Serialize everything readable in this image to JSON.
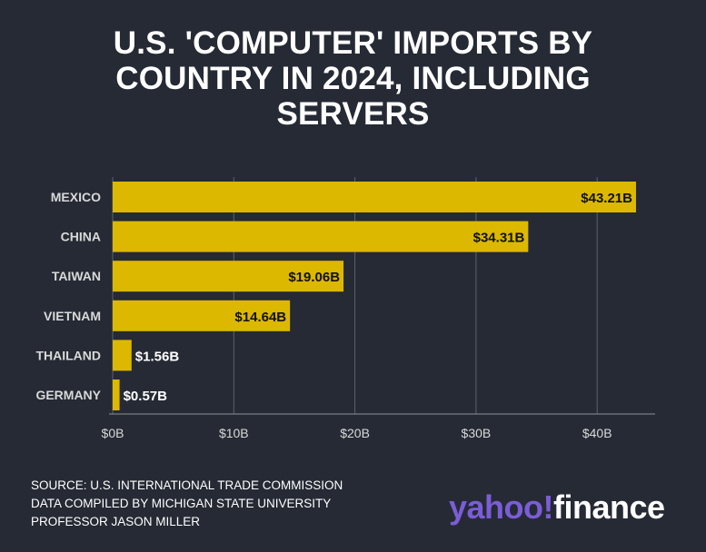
{
  "title": "U.S. 'COMPUTER' IMPORTS BY COUNTRY IN 2024, INCLUDING SERVERS",
  "source_lines": [
    "SOURCE: U.S. INTERNATIONAL TRADE COMMISSION",
    "DATA COMPILED BY MICHIGAN STATE UNIVERSITY",
    "PROFESSOR JASON MILLER"
  ],
  "logo": {
    "part1": "yahoo!",
    "part2": "finance"
  },
  "colors": {
    "background": "#252a34",
    "bar": "#dcb800",
    "grid": "#5c616b",
    "label": "#d9d9d9",
    "logo_purple": "#7b5dd6"
  },
  "chart_data": {
    "type": "bar",
    "orientation": "horizontal",
    "categories": [
      "MEXICO",
      "CHINA",
      "TAIWAN",
      "VIETNAM",
      "THAILAND",
      "GERMANY"
    ],
    "values": [
      43.21,
      34.31,
      19.06,
      14.64,
      1.56,
      0.57
    ],
    "value_labels": [
      "$43.21B",
      "$34.31B",
      "$19.06B",
      "$14.64B",
      "$1.56B",
      "$0.57B"
    ],
    "x_ticks": [
      0,
      10,
      20,
      30,
      40
    ],
    "x_tick_labels": [
      "$0B",
      "$10B",
      "$20B",
      "$30B",
      "$40B"
    ],
    "xlim": [
      0,
      45
    ],
    "grid": true
  }
}
